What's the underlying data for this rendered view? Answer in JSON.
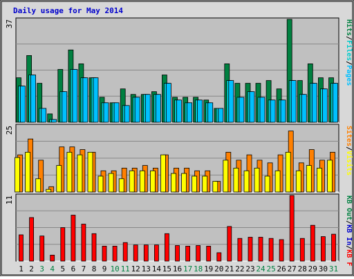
{
  "title": "Daily usage for May 2014",
  "colors": {
    "title": "#0000cc",
    "background": "#d8d8d8",
    "plot": "#c0c0c0",
    "grid": "#888888",
    "pages": "#00c0ff",
    "files": "#00cccc",
    "hits": "#008040",
    "visits": "#ffff00",
    "sites": "#ff8000",
    "kb_out": "#008040",
    "kb_in": "#0000cc",
    "kb_f": "#ff0000",
    "weekend_day": "#008040",
    "weekday": "#000000"
  },
  "chart_data": [
    {
      "type": "bar",
      "title": "Daily usage for May 2014",
      "y_max_label": "37",
      "ylim": [
        0,
        37
      ],
      "legend": [
        "Pages",
        "Files",
        "Hits"
      ],
      "legend_separator": "/",
      "categories": [
        "1",
        "2",
        "3",
        "4",
        "5",
        "6",
        "7",
        "8",
        "9",
        "10",
        "11",
        "12",
        "13",
        "14",
        "15",
        "16",
        "17",
        "18",
        "19",
        "20",
        "21",
        "22",
        "23",
        "24",
        "25",
        "26",
        "27",
        "28",
        "29",
        "30",
        "31"
      ],
      "series": [
        {
          "name": "Hits",
          "color": "#008040",
          "values": [
            16,
            24,
            14,
            3,
            19,
            26,
            21,
            16,
            9,
            7,
            12,
            10,
            10,
            11,
            17,
            9,
            9,
            9,
            8,
            5,
            21,
            14,
            14,
            14,
            15,
            12,
            37,
            15,
            21,
            16,
            16
          ]
        },
        {
          "name": "Files",
          "color": "#00cccc",
          "values": [
            13,
            17,
            5,
            1,
            11,
            19,
            16,
            16,
            7,
            7,
            6,
            9,
            10,
            10,
            14,
            8,
            7,
            8,
            7,
            5,
            15,
            9,
            11,
            9,
            8,
            8,
            15,
            10,
            14,
            12,
            14
          ]
        },
        {
          "name": "Pages",
          "color": "#00c0ff",
          "values": [
            13,
            17,
            5,
            1,
            11,
            19,
            16,
            16,
            7,
            7,
            6,
            9,
            10,
            10,
            14,
            8,
            7,
            8,
            7,
            5,
            15,
            9,
            11,
            9,
            8,
            8,
            15,
            10,
            14,
            12,
            14
          ]
        }
      ]
    },
    {
      "type": "bar",
      "y_max_label": "25",
      "ylim": [
        0,
        25
      ],
      "legend": [
        "Visits",
        "Sites"
      ],
      "legend_separator": "/",
      "categories": [
        "1",
        "2",
        "3",
        "4",
        "5",
        "6",
        "7",
        "8",
        "9",
        "10",
        "11",
        "12",
        "13",
        "14",
        "15",
        "16",
        "17",
        "18",
        "19",
        "20",
        "21",
        "22",
        "23",
        "24",
        "25",
        "26",
        "27",
        "28",
        "29",
        "30",
        "31"
      ],
      "series": [
        {
          "name": "Sites",
          "color": "#ff8000",
          "values": [
            14,
            20,
            12,
            2,
            17,
            17,
            16,
            15,
            8,
            8,
            9,
            9,
            10,
            9,
            14,
            9,
            9,
            8,
            8,
            4,
            15,
            12,
            14,
            12,
            11,
            14,
            23,
            11,
            16,
            12,
            15
          ]
        },
        {
          "name": "Visits",
          "color": "#ffff00",
          "values": [
            13,
            15,
            5,
            1,
            10,
            15,
            14,
            15,
            6,
            7,
            5,
            8,
            8,
            8,
            14,
            7,
            7,
            6,
            6,
            4,
            12,
            9,
            8,
            9,
            6,
            8,
            15,
            8,
            10,
            9,
            12
          ]
        }
      ]
    },
    {
      "type": "bar",
      "y_max_label": "11",
      "ylim": [
        0,
        11
      ],
      "legend": [
        "KB F",
        "KB In",
        "KB Out"
      ],
      "legend_separator": "/",
      "categories": [
        "1",
        "2",
        "3",
        "4",
        "5",
        "6",
        "7",
        "8",
        "9",
        "10",
        "11",
        "12",
        "13",
        "14",
        "15",
        "16",
        "17",
        "18",
        "19",
        "20",
        "21",
        "22",
        "23",
        "24",
        "25",
        "26",
        "27",
        "28",
        "29",
        "30",
        "31"
      ],
      "series": [
        {
          "name": "KB F",
          "color": "#ff0000",
          "values": [
            4.4,
            7.3,
            4.2,
            1,
            5.6,
            7.7,
            6.2,
            4.6,
            2.5,
            2.5,
            3.1,
            2.7,
            2.7,
            2.7,
            4.6,
            2.6,
            2.5,
            2.6,
            2.5,
            1.4,
            5.8,
            3.8,
            4,
            4,
            3.8,
            3.6,
            11.3,
            3.8,
            6,
            4.1,
            4.5
          ]
        }
      ]
    }
  ],
  "weekend_days": [
    "3",
    "4",
    "10",
    "11",
    "17",
    "18",
    "24",
    "25",
    "31"
  ]
}
